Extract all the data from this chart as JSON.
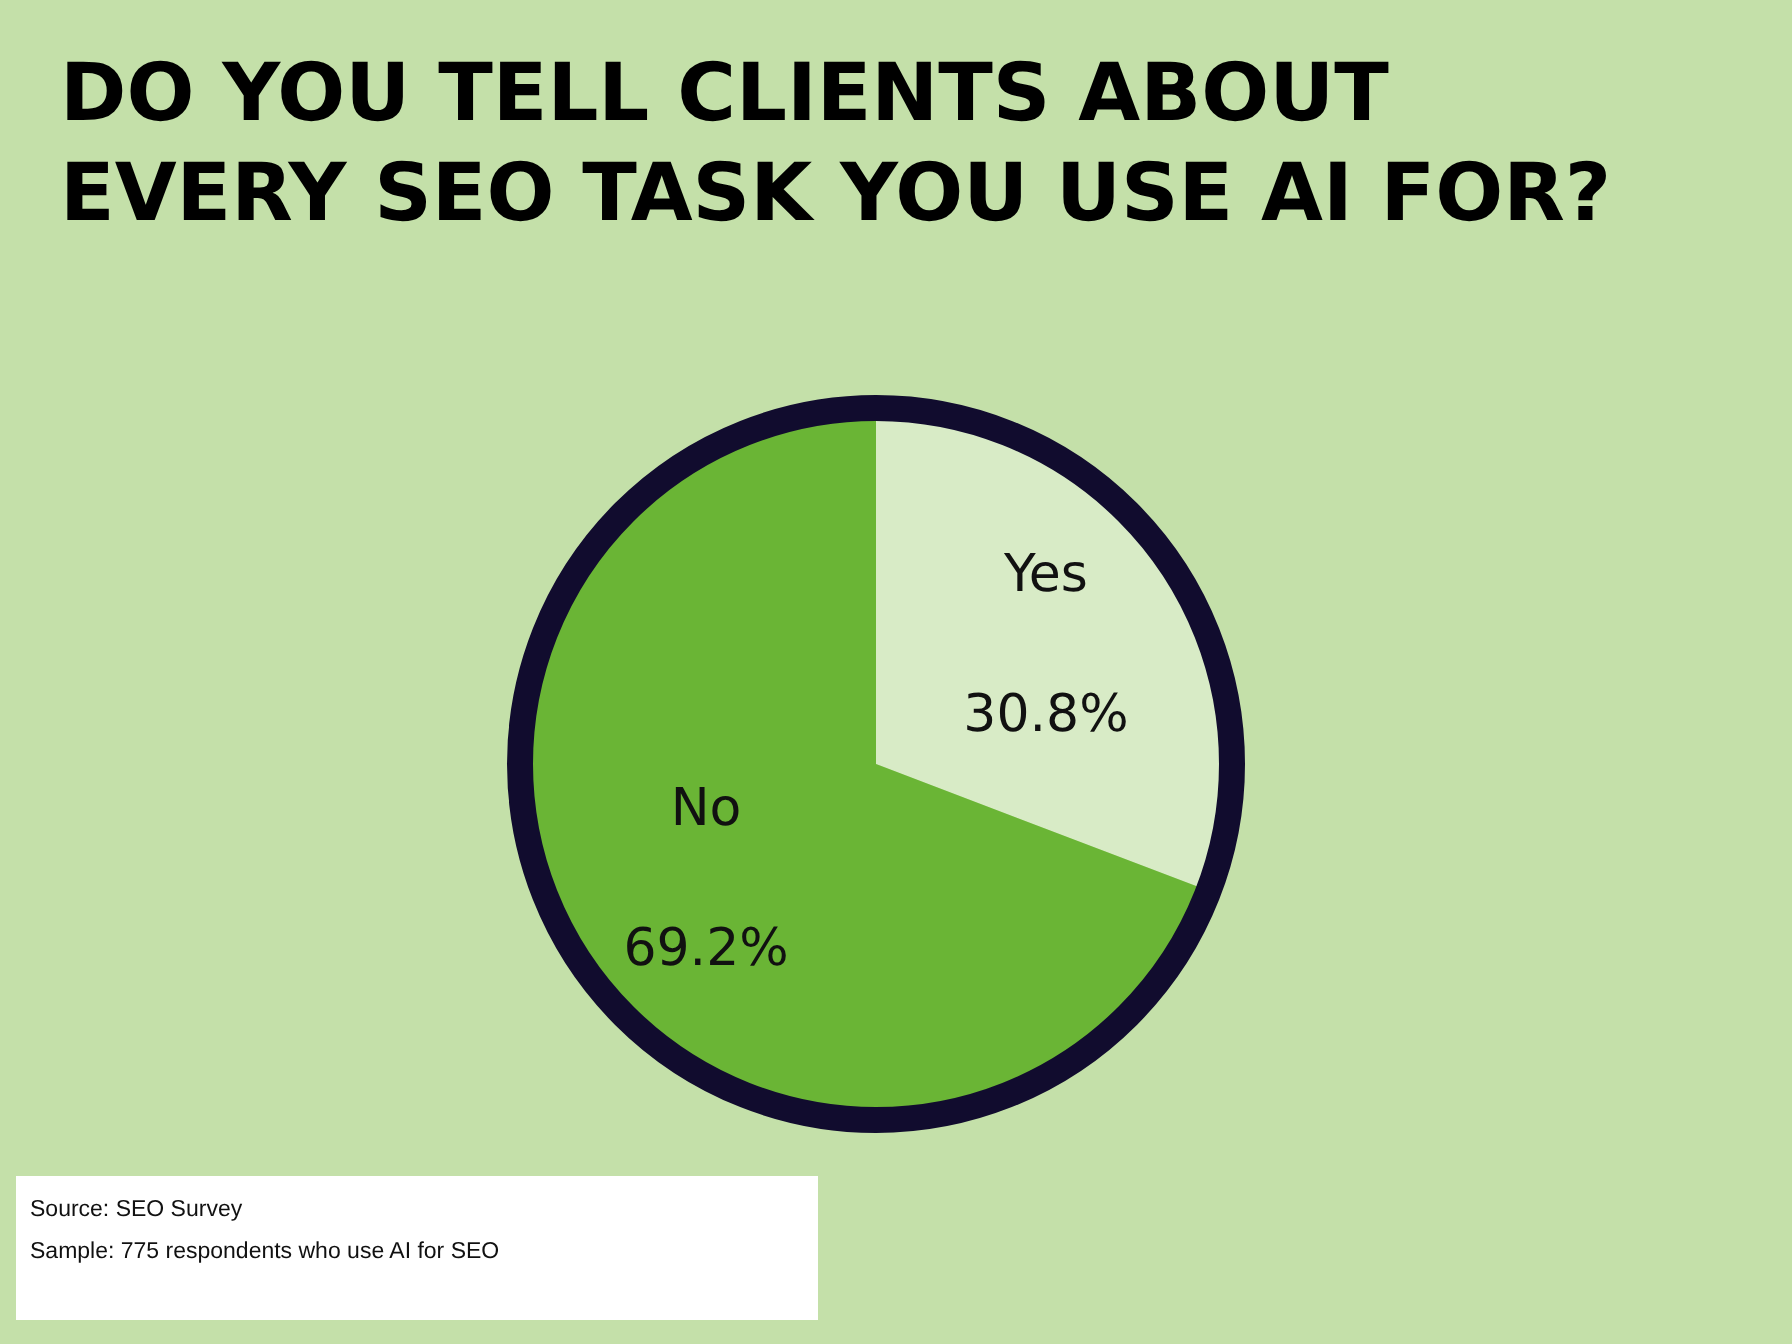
{
  "chart_data": {
    "type": "pie",
    "title": "DO YOU TELL CLIENTS ABOUT EVERY SEO TASK YOU USE AI FOR?",
    "categories": [
      "Yes",
      "No"
    ],
    "values": [
      30.8,
      69.2
    ],
    "colors": [
      "#d8ebc6",
      "#6ab535"
    ],
    "value_labels": [
      "30.8%",
      "69.2%"
    ],
    "annotations": [
      "Source: SEO Survey",
      "Sample: 775 respondents who use AI for SEO"
    ]
  }
}
